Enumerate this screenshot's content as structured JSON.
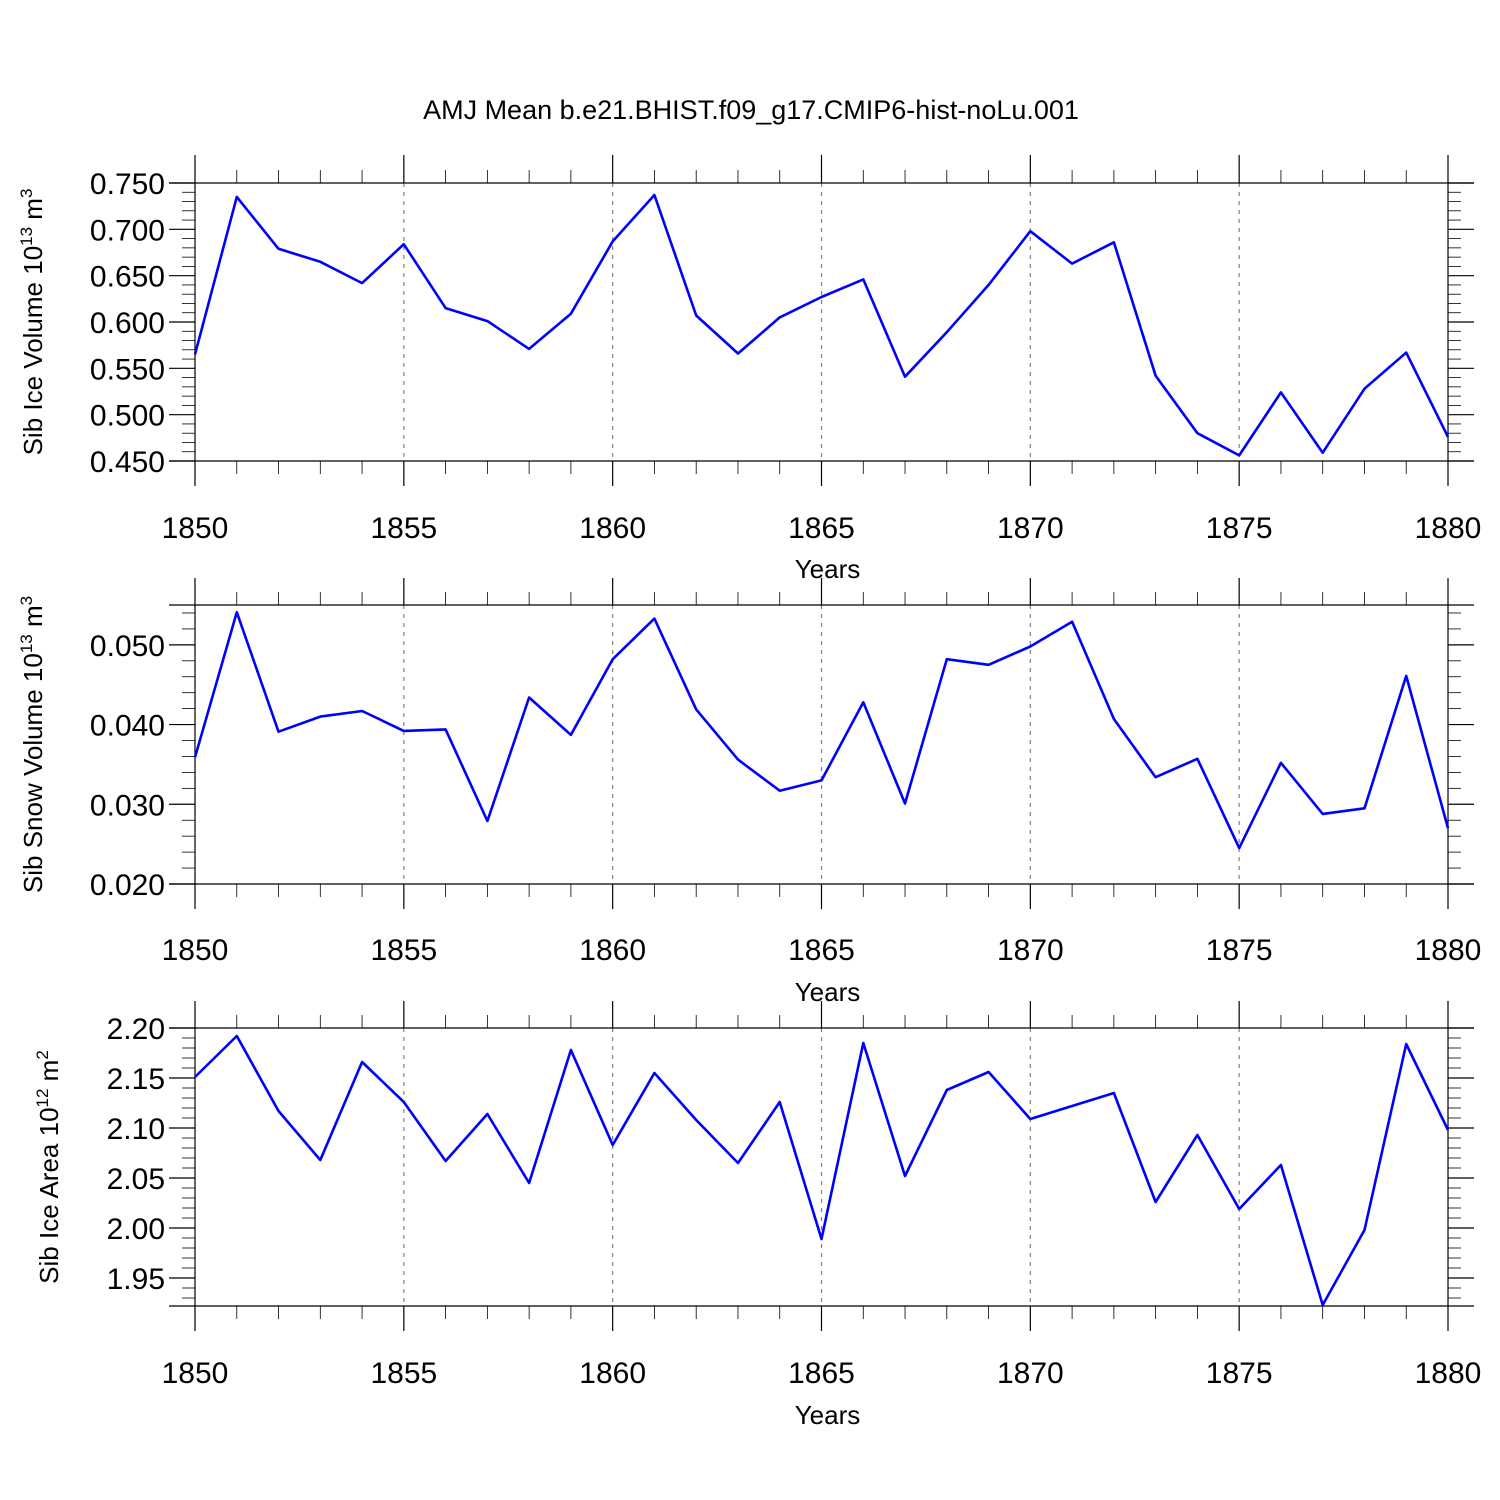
{
  "title": "AMJ Mean b.e21.BHIST.f09_g17.CMIP6-hist-noLu.001",
  "line_color": "#0000ff",
  "chart_data": [
    {
      "type": "line",
      "ylabel_main": "Sib Ice Volume 10",
      "ylabel_exp": "13",
      "ylabel_unit": "m",
      "ylabel_unit_exp": "3",
      "xlabel": "Years",
      "xlim": [
        1850,
        1880
      ],
      "ylim": [
        0.45,
        0.75
      ],
      "yticks": [
        0.45,
        0.5,
        0.55,
        0.6,
        0.65,
        0.7,
        0.75
      ],
      "ytick_labels": [
        "0.450",
        "0.500",
        "0.550",
        "0.600",
        "0.650",
        "0.700",
        "0.750"
      ],
      "yminor": 0.01,
      "xticks": [
        1850,
        1855,
        1860,
        1865,
        1870,
        1875,
        1880
      ],
      "xtick_labels": [
        "1850",
        "1855",
        "1860",
        "1865",
        "1870",
        "1875",
        "1880"
      ],
      "grid": "dashed at major x ticks",
      "x": [
        1850,
        1851,
        1852,
        1853,
        1854,
        1855,
        1856,
        1857,
        1858,
        1859,
        1860,
        1861,
        1862,
        1863,
        1864,
        1865,
        1866,
        1867,
        1868,
        1869,
        1870,
        1871,
        1872,
        1873,
        1874,
        1875,
        1876,
        1877,
        1878,
        1879,
        1880
      ],
      "values": [
        0.565,
        0.735,
        0.679,
        0.665,
        0.642,
        0.684,
        0.615,
        0.601,
        0.571,
        0.609,
        0.687,
        0.737,
        0.607,
        0.566,
        0.605,
        0.627,
        0.646,
        0.541,
        0.589,
        0.64,
        0.698,
        0.663,
        0.686,
        0.542,
        0.48,
        0.456,
        0.524,
        0.459,
        0.528,
        0.567,
        0.476
      ]
    },
    {
      "type": "line",
      "ylabel_main": "Sib Snow Volume 10",
      "ylabel_exp": "13",
      "ylabel_unit": "m",
      "ylabel_unit_exp": "3",
      "xlabel": "Years",
      "xlim": [
        1850,
        1880
      ],
      "ylim": [
        0.02,
        0.055
      ],
      "yticks": [
        0.02,
        0.03,
        0.04,
        0.05
      ],
      "ytick_labels": [
        "0.020",
        "0.030",
        "0.040",
        "0.050"
      ],
      "yminor": 0.002,
      "xticks": [
        1850,
        1855,
        1860,
        1865,
        1870,
        1875,
        1880
      ],
      "xtick_labels": [
        "1850",
        "1855",
        "1860",
        "1865",
        "1870",
        "1875",
        "1880"
      ],
      "grid": "dashed at major x ticks",
      "x": [
        1850,
        1851,
        1852,
        1853,
        1854,
        1855,
        1856,
        1857,
        1858,
        1859,
        1860,
        1861,
        1862,
        1863,
        1864,
        1865,
        1866,
        1867,
        1868,
        1869,
        1870,
        1871,
        1872,
        1873,
        1874,
        1875,
        1876,
        1877,
        1878,
        1879,
        1880
      ],
      "values": [
        0.0359,
        0.0541,
        0.0391,
        0.041,
        0.0417,
        0.0392,
        0.0394,
        0.0279,
        0.0434,
        0.0387,
        0.0482,
        0.0533,
        0.0419,
        0.0356,
        0.0317,
        0.033,
        0.0428,
        0.0301,
        0.0482,
        0.0475,
        0.0498,
        0.0529,
        0.0407,
        0.0334,
        0.0357,
        0.0245,
        0.0352,
        0.0288,
        0.0295,
        0.0461,
        0.027
      ]
    },
    {
      "type": "line",
      "ylabel_main": "Sib Ice Area 10",
      "ylabel_exp": "12",
      "ylabel_unit": "m",
      "ylabel_unit_exp": "2",
      "xlabel": "Years",
      "xlim": [
        1850,
        1880
      ],
      "ylim": [
        1.922,
        2.2
      ],
      "yticks": [
        1.95,
        2.0,
        2.05,
        2.1,
        2.15,
        2.2
      ],
      "ytick_labels": [
        "1.95",
        "2.00",
        "2.05",
        "2.10",
        "2.15",
        "2.20"
      ],
      "yminor": 0.01,
      "xticks": [
        1850,
        1855,
        1860,
        1865,
        1870,
        1875,
        1880
      ],
      "xtick_labels": [
        "1850",
        "1855",
        "1860",
        "1865",
        "1870",
        "1875",
        "1880"
      ],
      "grid": "dashed at major x ticks",
      "x": [
        1850,
        1851,
        1852,
        1853,
        1854,
        1855,
        1856,
        1857,
        1858,
        1859,
        1860,
        1861,
        1862,
        1863,
        1864,
        1865,
        1866,
        1867,
        1868,
        1869,
        1870,
        1871,
        1872,
        1873,
        1874,
        1875,
        1876,
        1877,
        1878,
        1879,
        1880
      ],
      "values": [
        2.151,
        2.192,
        2.117,
        2.068,
        2.166,
        2.126,
        2.067,
        2.114,
        2.045,
        2.178,
        2.083,
        2.155,
        2.108,
        2.065,
        2.126,
        1.989,
        2.185,
        2.052,
        2.138,
        2.156,
        2.109,
        2.122,
        2.135,
        2.026,
        2.093,
        2.019,
        2.063,
        1.923,
        1.998,
        2.184,
        2.098
      ]
    }
  ]
}
